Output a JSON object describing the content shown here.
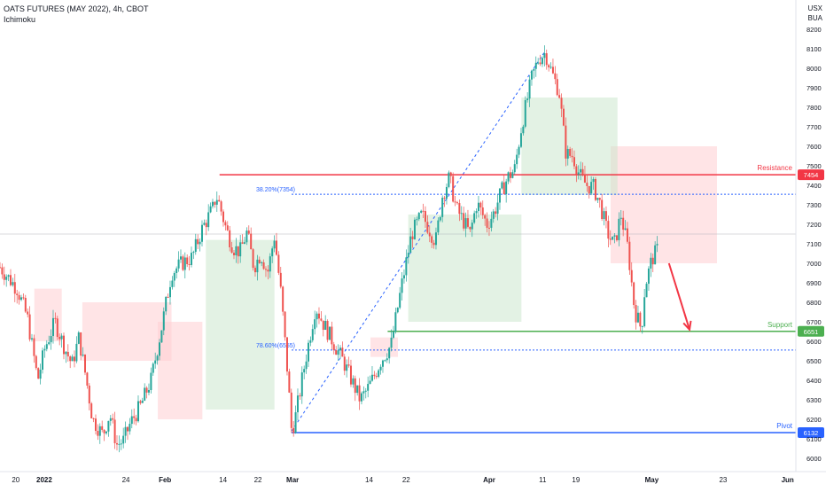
{
  "header": {
    "title": "OATS FUTURES (MAY 2022), 4h, CBOT",
    "indicator": "Ichimoku",
    "currency_line1": "USX",
    "currency_line2": "BUA"
  },
  "colors": {
    "bull": "#26a69a",
    "bear": "#ef5350",
    "resistance": "#f23645",
    "support": "#4caf50",
    "pivot": "#2962ff",
    "fib": "#2962ff",
    "cloud_bull": "#c8e6c9",
    "cloud_bear": "#ffcdd2",
    "arrow": "#f23645"
  },
  "chart_data": {
    "type": "candlestick",
    "y_axis": {
      "min": 5950,
      "max": 8250,
      "ticks": [
        8200,
        8100,
        8000,
        7900,
        7800,
        7700,
        7600,
        7500,
        7400,
        7300,
        7200,
        7100,
        7000,
        6900,
        6800,
        6700,
        6600,
        6500,
        6400,
        6300,
        6200,
        6100,
        6000
      ]
    },
    "x_axis": {
      "ticks": [
        {
          "label": "20",
          "x": 0.6
        },
        {
          "label": "2022",
          "x": 8.9
        },
        {
          "label": "24",
          "x": 32.7
        },
        {
          "label": "Feb",
          "x": 44.1
        },
        {
          "label": "14",
          "x": 61.0
        },
        {
          "label": "22",
          "x": 71.2
        },
        {
          "label": "Mar",
          "x": 81.3
        },
        {
          "label": "14",
          "x": 103.6
        },
        {
          "label": "22",
          "x": 114.4
        },
        {
          "label": "Apr",
          "x": 138.6
        },
        {
          "label": "11",
          "x": 154.2
        },
        {
          "label": "19",
          "x": 163.9
        },
        {
          "label": "May",
          "x": 186.0
        },
        {
          "label": "23",
          "x": 206.8
        },
        {
          "label": "Jun",
          "x": 225.6
        }
      ]
    },
    "price_path": [
      [
        -4,
        6980
      ],
      [
        1,
        6870
      ],
      [
        4,
        6720
      ],
      [
        7,
        6400
      ],
      [
        9,
        6560
      ],
      [
        12,
        6700
      ],
      [
        15,
        6560
      ],
      [
        17,
        6480
      ],
      [
        19,
        6620
      ],
      [
        21,
        6420
      ],
      [
        23,
        6200
      ],
      [
        26,
        6120
      ],
      [
        28,
        6230
      ],
      [
        30,
        6070
      ],
      [
        32,
        6090
      ],
      [
        34,
        6180
      ],
      [
        37,
        6270
      ],
      [
        40,
        6400
      ],
      [
        43,
        6660
      ],
      [
        46,
        6950
      ],
      [
        49,
        7000
      ],
      [
        52,
        7030
      ],
      [
        55,
        7180
      ],
      [
        58,
        7280
      ],
      [
        59,
        7350
      ],
      [
        60,
        7300
      ],
      [
        62,
        7170
      ],
      [
        64,
        7080
      ],
      [
        66,
        7060
      ],
      [
        68,
        7160
      ],
      [
        70,
        6980
      ],
      [
        72,
        7050
      ],
      [
        74,
        6950
      ],
      [
        76,
        7140
      ],
      [
        78,
        6830
      ],
      [
        80,
        6400
      ],
      [
        81,
        6140
      ],
      [
        82,
        6200
      ],
      [
        85,
        6500
      ],
      [
        88,
        6780
      ],
      [
        90,
        6700
      ],
      [
        93,
        6600
      ],
      [
        96,
        6500
      ],
      [
        98,
        6420
      ],
      [
        101,
        6300
      ],
      [
        103,
        6350
      ],
      [
        105,
        6420
      ],
      [
        107,
        6500
      ],
      [
        110,
        6580
      ],
      [
        113,
        6880
      ],
      [
        116,
        7150
      ],
      [
        119,
        7250
      ],
      [
        121,
        7180
      ],
      [
        123,
        7110
      ],
      [
        125,
        7350
      ],
      [
        127,
        7440
      ],
      [
        129,
        7280
      ],
      [
        131,
        7220
      ],
      [
        133,
        7150
      ],
      [
        135,
        7310
      ],
      [
        138,
        7200
      ],
      [
        140,
        7260
      ],
      [
        142,
        7360
      ],
      [
        144,
        7440
      ],
      [
        146,
        7480
      ],
      [
        148,
        7700
      ],
      [
        151,
        7950
      ],
      [
        153,
        8050
      ],
      [
        155,
        8080
      ],
      [
        157,
        7970
      ],
      [
        159,
        7880
      ],
      [
        161,
        7560
      ],
      [
        163,
        7550
      ],
      [
        165,
        7450
      ],
      [
        167,
        7400
      ],
      [
        169,
        7390
      ],
      [
        171,
        7300
      ],
      [
        173,
        7160
      ],
      [
        175,
        7090
      ],
      [
        177,
        7250
      ],
      [
        179,
        7080
      ],
      [
        181,
        6760
      ],
      [
        183,
        6660
      ],
      [
        184,
        6880
      ],
      [
        186,
        7020
      ],
      [
        188,
        7080
      ]
    ],
    "ichimoku_cloud": {
      "bearish_spans": [
        {
          "x_from": 6,
          "x_to": 14,
          "top": 6870,
          "bottom": 6600
        },
        {
          "x_from": 20,
          "x_to": 46,
          "top": 6800,
          "bottom": 6500
        },
        {
          "x_from": 42,
          "x_to": 55,
          "top": 6700,
          "bottom": 6200
        },
        {
          "x_from": 104,
          "x_to": 112,
          "top": 6620,
          "bottom": 6520
        },
        {
          "x_from": 174,
          "x_to": 205,
          "top": 7600,
          "bottom": 7000
        }
      ],
      "bullish_spans": [
        {
          "x_from": 56,
          "x_to": 76,
          "top": 7120,
          "bottom": 6250
        },
        {
          "x_from": 115,
          "x_to": 148,
          "top": 7250,
          "bottom": 6700
        },
        {
          "x_from": 148,
          "x_to": 176,
          "top": 7850,
          "bottom": 7350
        }
      ]
    },
    "levels": [
      {
        "name": "Resistance",
        "value": 7454,
        "label": "7454",
        "color_key": "resistance",
        "from_x": 60,
        "style": "solid"
      },
      {
        "name": "Support",
        "value": 6651,
        "label": "6651",
        "color_key": "support",
        "from_x": 109,
        "style": "solid"
      },
      {
        "name": "Pivot",
        "value": 6132,
        "label": "6132",
        "color_key": "pivot",
        "from_x": 81,
        "style": "solid"
      }
    ],
    "fib_levels": [
      {
        "label": "38.20%(7354)",
        "value": 7354
      },
      {
        "label": "78.60%(6555)",
        "value": 6555
      }
    ],
    "fib_line_start": {
      "x": 81,
      "y": 6140
    },
    "fib_line_end": {
      "x": 155,
      "y": 8090
    },
    "arrow": {
      "from": {
        "x": 191,
        "y": 7000
      },
      "to": {
        "x": 197,
        "y": 6660
      }
    },
    "current_price_line": 7150
  }
}
